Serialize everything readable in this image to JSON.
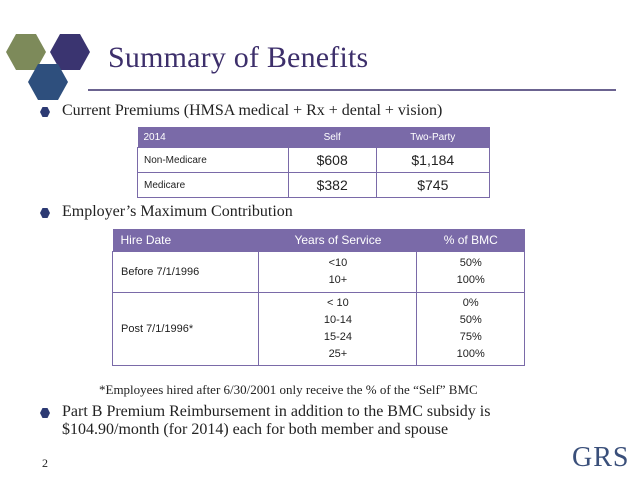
{
  "colors": {
    "title": "#3d2f6b",
    "table_header": "#7a6aa8",
    "hex_green": "#7d8a5a",
    "hex_purple": "#3a3470",
    "hex_blue": "#2e4f7d",
    "bullet": "#2c3a73"
  },
  "icons": [
    "hexagon-green-icon",
    "hexagon-purple-icon",
    "hexagon-blue-icon",
    "hexagon-bullet-icon"
  ],
  "title": "Summary of Benefits",
  "bullets": [
    {
      "text": "Current Premiums (HMSA medical + Rx + dental + vision)"
    },
    {
      "text": "Employer’s Maximum Contribution"
    },
    {
      "line1": "Part B Premium Reimbursement in addition to the BMC subsidy is",
      "line2": "$104.90/month (for 2014) each for both member and spouse"
    }
  ],
  "premiums_table": {
    "headers": [
      "2014",
      "Self",
      "Two-Party"
    ],
    "rows": [
      [
        "Non-Medicare",
        "$608",
        "$1,184"
      ],
      [
        "Medicare",
        "$382",
        "$745"
      ]
    ]
  },
  "contribution_table": {
    "headers": [
      "Hire Date",
      "Years of Service",
      "% of BMC"
    ],
    "rows": [
      {
        "hire_date": "Before 7/1/1996",
        "years": [
          "<10",
          "10+"
        ],
        "pct": [
          "50%",
          "100%"
        ]
      },
      {
        "hire_date": "Post 7/1/1996*",
        "years": [
          "< 10",
          "10-14",
          "15-24",
          "25+"
        ],
        "pct": [
          "0%",
          "50%",
          "75%",
          "100%"
        ]
      }
    ]
  },
  "note": "*Employees hired after 6/30/2001 only receive the % of the “Self” BMC",
  "page_number": "2",
  "logo_text": "GRS"
}
